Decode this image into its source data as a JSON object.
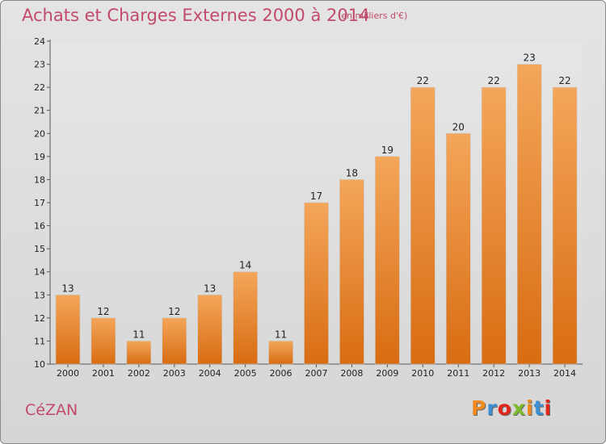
{
  "header": {
    "title": "Achats et Charges Externes 2000 à 2014",
    "unit": "(en milliers d'€)"
  },
  "footer": {
    "commune": "CéZAN",
    "logo": "Proxiti",
    "logo_colors": [
      "#f08a1c",
      "#3b8fd4",
      "#e2261c",
      "#7dbb2e",
      "#f08a1c",
      "#3b8fd4",
      "#e2261c"
    ]
  },
  "colors": {
    "title": "#c24a6a",
    "bar_top": "#f4a65a",
    "bar_bottom": "#d86c12",
    "background": "#dedede"
  },
  "chart_data": {
    "type": "bar",
    "categories": [
      "2000",
      "2001",
      "2002",
      "2003",
      "2004",
      "2005",
      "2006",
      "2007",
      "2008",
      "2009",
      "2010",
      "2011",
      "2012",
      "2013",
      "2014"
    ],
    "values": [
      13,
      12,
      11,
      12,
      13,
      14,
      11,
      17,
      18,
      19,
      22,
      20,
      22,
      23,
      22
    ],
    "ylim": [
      10,
      24
    ],
    "yticks": [
      10,
      11,
      12,
      13,
      14,
      15,
      16,
      17,
      18,
      19,
      20,
      21,
      22,
      23,
      24
    ],
    "grid": false,
    "data_labels": true
  }
}
